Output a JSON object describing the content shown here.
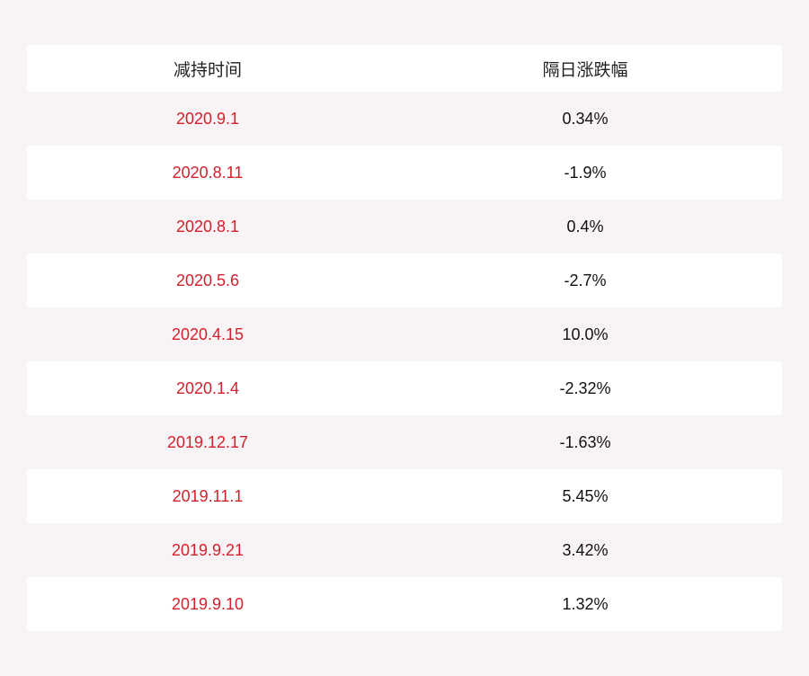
{
  "table": {
    "header": [
      "减持时间",
      "隔日涨跌幅"
    ],
    "rows": [
      [
        "2020.9.1",
        "0.34%"
      ],
      [
        "2020.8.11",
        "-1.9%"
      ],
      [
        "2020.8.1",
        "0.4%"
      ],
      [
        "2020.5.6",
        "-2.7%"
      ],
      [
        "2020.4.15",
        "10.0%"
      ],
      [
        "2020.1.4",
        "-2.32%"
      ],
      [
        "2019.12.17",
        "-1.63%"
      ],
      [
        "2019.11.1",
        "5.45%"
      ],
      [
        "2019.9.21",
        "3.42%"
      ],
      [
        "2019.9.10",
        "1.32%"
      ]
    ]
  }
}
